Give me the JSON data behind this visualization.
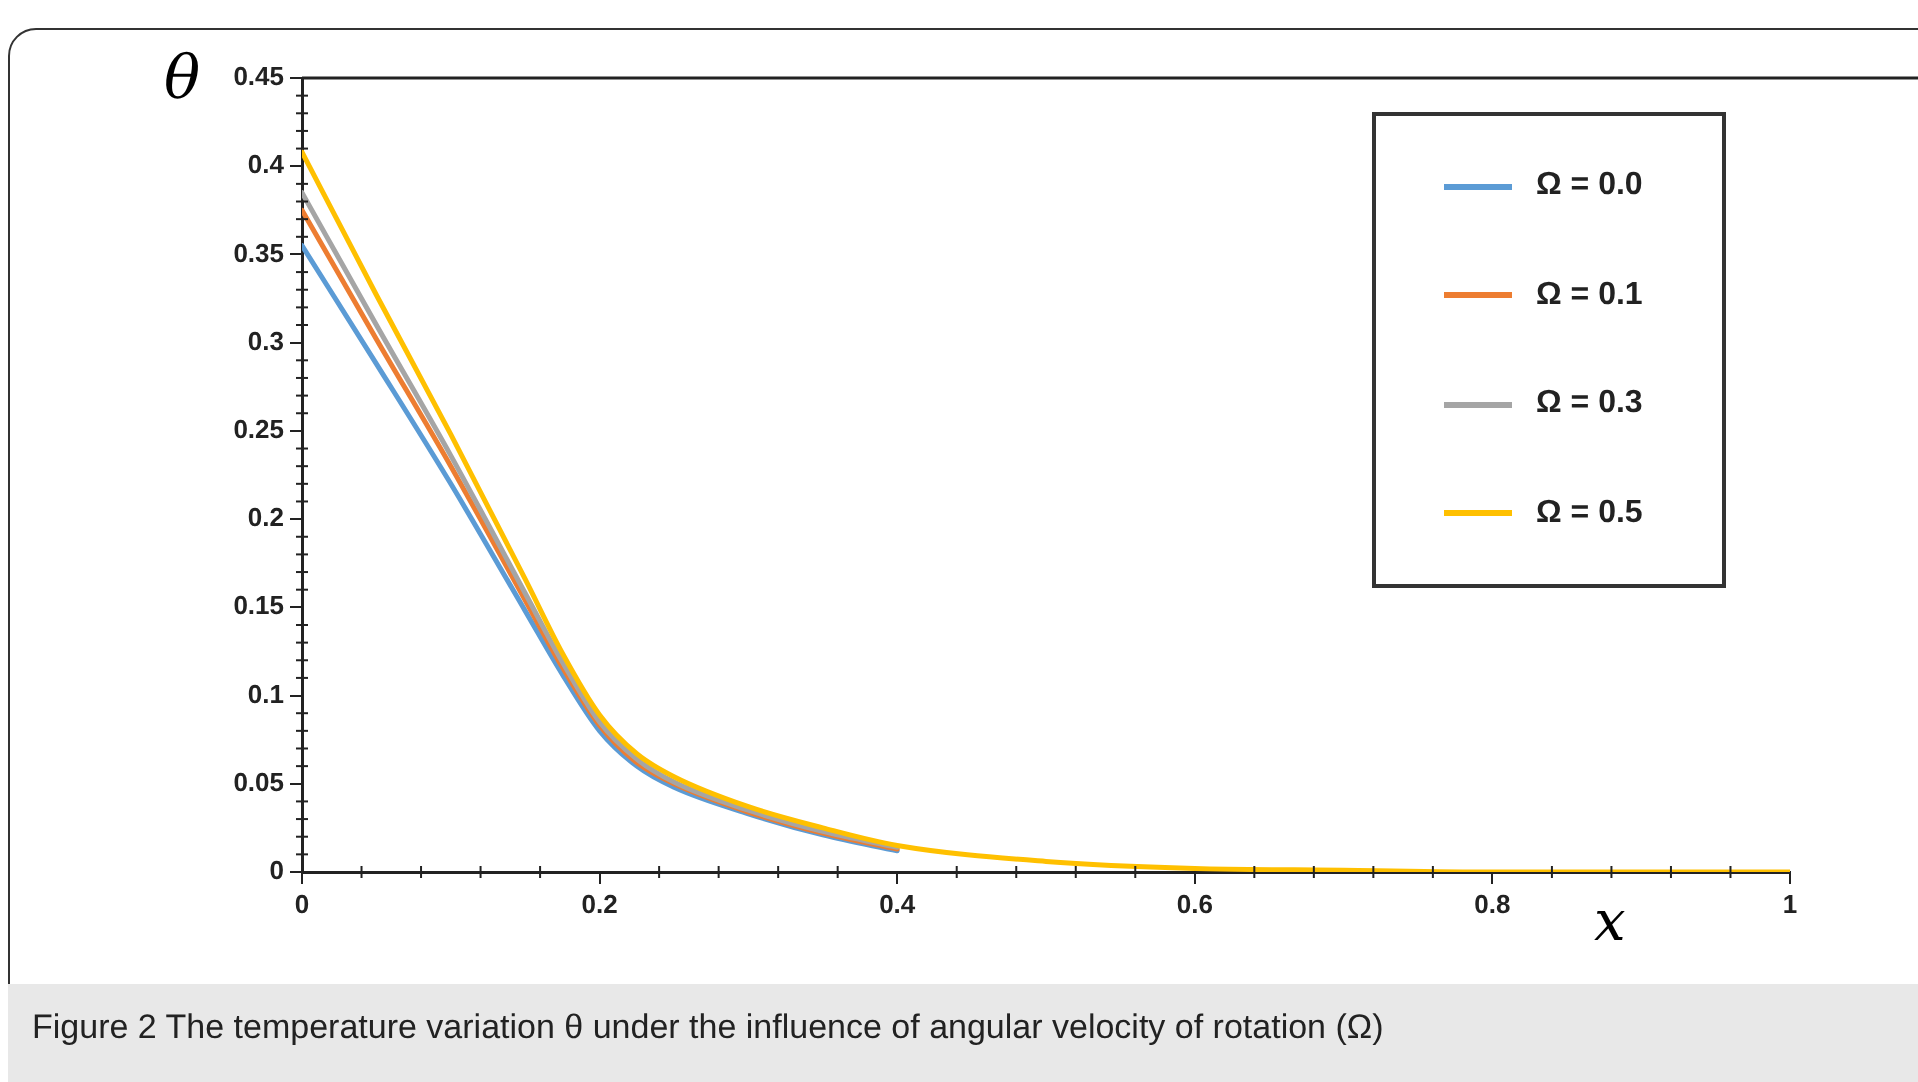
{
  "chart_data": {
    "type": "line",
    "xlabel": "x",
    "ylabel": "θ",
    "annotations": [
      "Figure 2  The temperature variation θ under the influence of angular velocity of rotation (Ω)"
    ],
    "x": [
      0,
      0.05,
      0.1,
      0.15,
      0.175,
      0.2,
      0.225,
      0.25,
      0.3,
      0.35,
      0.4,
      0.5,
      0.6,
      0.7,
      0.8,
      1
    ],
    "series": [
      {
        "name": "Ω = 0.0",
        "color": "#5b9bd5",
        "values": [
          0.355,
          0.288,
          0.22,
          0.148,
          0.112,
          0.08,
          0.06,
          0.048,
          0.033,
          0.021,
          0.012,
          null,
          null,
          null,
          null,
          null
        ]
      },
      {
        "name": "Ω = 0.1",
        "color": "#ed7d31",
        "values": [
          0.375,
          0.302,
          0.23,
          0.154,
          0.116,
          0.083,
          0.062,
          0.05,
          0.034,
          0.022,
          0.013,
          null,
          null,
          null,
          null,
          null
        ]
      },
      {
        "name": "Ω = 0.3",
        "color": "#a5a5a5",
        "values": [
          0.385,
          0.31,
          0.236,
          0.158,
          0.119,
          0.085,
          0.064,
          0.051,
          0.035,
          0.023,
          0.014,
          null,
          null,
          null,
          null,
          null
        ]
      },
      {
        "name": "Ω = 0.5",
        "color": "#ffc000",
        "values": [
          0.408,
          0.327,
          0.248,
          0.166,
          0.124,
          0.089,
          0.067,
          0.054,
          0.037,
          0.025,
          0.015,
          0.006,
          0.002,
          0.001,
          0,
          0
        ]
      }
    ],
    "xlim": [
      0,
      1
    ],
    "xticks": [
      0,
      0.2,
      0.4,
      0.6,
      0.8,
      1
    ],
    "ylim": [
      0,
      0.45
    ],
    "yticks": [
      0,
      0.05,
      0.1,
      0.15,
      0.2,
      0.25,
      0.3,
      0.35,
      0.4,
      0.45
    ],
    "grid": false,
    "legend": "top right",
    "marker": "none",
    "line_style": "solid"
  }
}
